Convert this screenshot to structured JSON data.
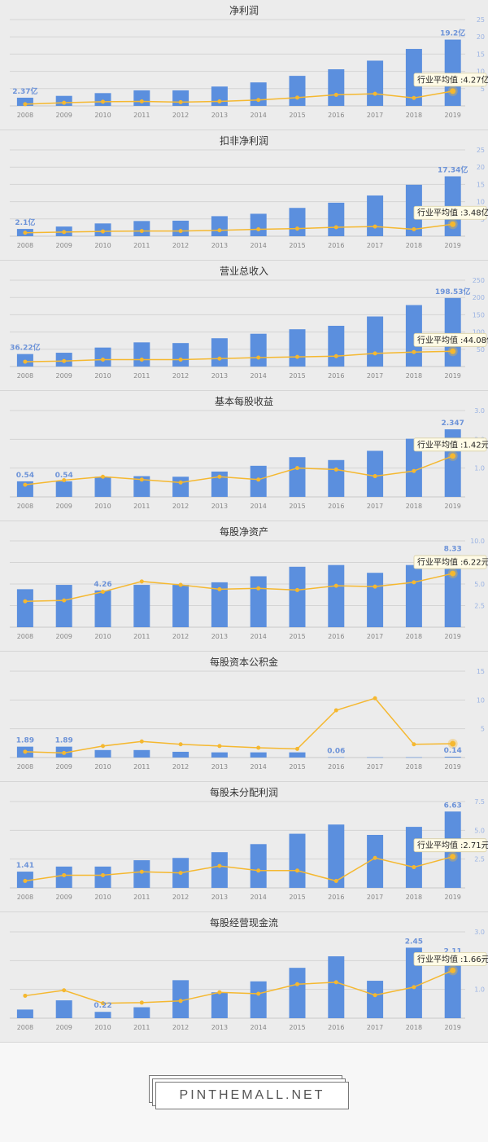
{
  "chart_data": [
    {
      "type": "bar",
      "title": "净利润",
      "categories": [
        "2008",
        "2009",
        "2010",
        "2011",
        "2012",
        "2013",
        "2014",
        "2015",
        "2016",
        "2017",
        "2018",
        "2019"
      ],
      "series": [
        {
          "values": [
            2.37,
            2.9,
            3.7,
            4.5,
            4.5,
            5.6,
            6.8,
            8.7,
            10.6,
            13.1,
            16.5,
            19.2
          ],
          "color": "#5b8fde"
        },
        {
          "values": [
            0.5,
            0.9,
            1.2,
            1.3,
            1.1,
            1.3,
            1.7,
            2.4,
            3.2,
            3.5,
            2.3,
            4.27
          ],
          "color": "#f5b830"
        }
      ],
      "yticks": [
        "5",
        "10",
        "15",
        "20",
        "25"
      ],
      "ylim": [
        0,
        25
      ],
      "data_labels": [
        {
          "index": 0,
          "text": "2.37亿"
        },
        {
          "index": 11,
          "text": "19.2亿"
        }
      ],
      "tooltip": {
        "label": "行业平均值",
        "value": ":4.27亿"
      }
    },
    {
      "type": "bar",
      "title": "扣非净利润",
      "categories": [
        "2008",
        "2009",
        "2010",
        "2011",
        "2012",
        "2013",
        "2014",
        "2015",
        "2016",
        "2017",
        "2018",
        "2019"
      ],
      "series": [
        {
          "values": [
            2.1,
            2.8,
            3.7,
            4.4,
            4.5,
            5.8,
            6.5,
            8.2,
            9.7,
            11.8,
            14.9,
            17.34
          ],
          "color": "#5b8fde"
        },
        {
          "values": [
            1.0,
            1.2,
            1.4,
            1.5,
            1.5,
            1.7,
            2.0,
            2.2,
            2.6,
            2.8,
            2.0,
            3.48
          ],
          "color": "#f5b830"
        }
      ],
      "yticks": [
        "5",
        "10",
        "15",
        "20",
        "25"
      ],
      "ylim": [
        0,
        25
      ],
      "data_labels": [
        {
          "index": 0,
          "text": "2.1亿"
        },
        {
          "index": 11,
          "text": "17.34亿"
        }
      ],
      "tooltip": {
        "label": "行业平均值",
        "value": ":3.48亿"
      }
    },
    {
      "type": "bar",
      "title": "营业总收入",
      "categories": [
        "2008",
        "2009",
        "2010",
        "2011",
        "2012",
        "2013",
        "2014",
        "2015",
        "2016",
        "2017",
        "2018",
        "2019"
      ],
      "series": [
        {
          "values": [
            36.22,
            40,
            55,
            70,
            68,
            82,
            95,
            108,
            118,
            145,
            178,
            198.53
          ],
          "color": "#5b8fde"
        },
        {
          "values": [
            14,
            16,
            20,
            20,
            20,
            23,
            26,
            28,
            30,
            38,
            42,
            44.08
          ],
          "color": "#f5b830"
        }
      ],
      "yticks": [
        "50",
        "100",
        "150",
        "200",
        "250"
      ],
      "ylim": [
        0,
        250
      ],
      "data_labels": [
        {
          "index": 0,
          "text": "36.22亿"
        },
        {
          "index": 11,
          "text": "198.53亿"
        }
      ],
      "tooltip": {
        "label": "行业平均值",
        "value": ":44.08亿"
      }
    },
    {
      "type": "bar",
      "title": "基本每股收益",
      "categories": [
        "2008",
        "2009",
        "2010",
        "2011",
        "2012",
        "2013",
        "2014",
        "2015",
        "2016",
        "2017",
        "2018",
        "2019"
      ],
      "series": [
        {
          "values": [
            0.54,
            0.54,
            0.7,
            0.72,
            0.7,
            0.88,
            1.08,
            1.38,
            1.28,
            1.6,
            2.02,
            2.347
          ],
          "color": "#5b8fde"
        },
        {
          "values": [
            0.42,
            0.58,
            0.7,
            0.6,
            0.5,
            0.7,
            0.6,
            1.0,
            0.95,
            0.72,
            0.9,
            1.42
          ],
          "color": "#f5b830"
        }
      ],
      "yticks": [
        "1.0",
        "2.0",
        "3.0"
      ],
      "ylim": [
        0,
        3
      ],
      "data_labels": [
        {
          "index": 0,
          "text": "0.54"
        },
        {
          "index": 1,
          "text": "0.54"
        },
        {
          "index": 11,
          "text": "2.347"
        }
      ],
      "tooltip": {
        "label": "行业平均值",
        "value": ":1.42元"
      }
    },
    {
      "type": "bar",
      "title": "每股净资产",
      "categories": [
        "2008",
        "2009",
        "2010",
        "2011",
        "2012",
        "2013",
        "2014",
        "2015",
        "2016",
        "2017",
        "2018",
        "2019"
      ],
      "series": [
        {
          "values": [
            4.4,
            4.9,
            4.26,
            4.9,
            4.9,
            5.2,
            5.9,
            7.0,
            7.2,
            6.3,
            7.2,
            8.33
          ],
          "color": "#5b8fde"
        },
        {
          "values": [
            3.0,
            3.1,
            4.1,
            5.3,
            4.9,
            4.4,
            4.5,
            4.3,
            4.8,
            4.7,
            5.2,
            6.22
          ],
          "color": "#f5b830"
        }
      ],
      "yticks": [
        "2.5",
        "5.0",
        "7.5",
        "10.0"
      ],
      "ylim": [
        0,
        10
      ],
      "data_labels": [
        {
          "index": 2,
          "text": "4.26"
        },
        {
          "index": 11,
          "text": "8.33"
        }
      ],
      "tooltip": {
        "label": "行业平均值",
        "value": ":6.22元"
      }
    },
    {
      "type": "bar",
      "title": "每股资本公积金",
      "categories": [
        "2008",
        "2009",
        "2010",
        "2011",
        "2012",
        "2013",
        "2014",
        "2015",
        "2016",
        "2017",
        "2018",
        "2019"
      ],
      "series": [
        {
          "values": [
            1.89,
            1.89,
            1.3,
            1.3,
            1.0,
            0.9,
            0.9,
            0.9,
            0.06,
            0.05,
            0.05,
            0.14
          ],
          "color": "#5b8fde"
        },
        {
          "values": [
            1.0,
            0.8,
            2.0,
            2.8,
            2.3,
            2.0,
            1.7,
            1.5,
            8.2,
            10.3,
            2.3,
            2.4
          ],
          "color": "#f5b830"
        }
      ],
      "yticks": [
        "5",
        "10",
        "15"
      ],
      "ylim": [
        0,
        15
      ],
      "data_labels": [
        {
          "index": 0,
          "text": "1.89"
        },
        {
          "index": 1,
          "text": "1.89"
        },
        {
          "index": 8,
          "text": "0.06"
        },
        {
          "index": 11,
          "text": "0.14"
        }
      ],
      "tooltip": null
    },
    {
      "type": "bar",
      "title": "每股未分配利润",
      "categories": [
        "2008",
        "2009",
        "2010",
        "2011",
        "2012",
        "2013",
        "2014",
        "2015",
        "2016",
        "2017",
        "2018",
        "2019"
      ],
      "series": [
        {
          "values": [
            1.41,
            1.85,
            1.85,
            2.4,
            2.6,
            3.1,
            3.8,
            4.7,
            5.5,
            4.6,
            5.3,
            6.63
          ],
          "color": "#5b8fde"
        },
        {
          "values": [
            0.6,
            1.1,
            1.1,
            1.4,
            1.3,
            1.9,
            1.5,
            1.5,
            0.6,
            2.6,
            1.8,
            2.71
          ],
          "color": "#f5b830"
        }
      ],
      "yticks": [
        "2.5",
        "5.0",
        "7.5"
      ],
      "ylim": [
        0,
        7.5
      ],
      "data_labels": [
        {
          "index": 0,
          "text": "1.41"
        },
        {
          "index": 11,
          "text": "6.63"
        }
      ],
      "tooltip": {
        "label": "行业平均值",
        "value": ":2.71元"
      }
    },
    {
      "type": "bar",
      "title": "每股经营现金流",
      "categories": [
        "2008",
        "2009",
        "2010",
        "2011",
        "2012",
        "2013",
        "2014",
        "2015",
        "2016",
        "2017",
        "2018",
        "2019"
      ],
      "series": [
        {
          "values": [
            0.3,
            0.62,
            0.22,
            0.38,
            1.32,
            0.9,
            1.28,
            1.75,
            2.15,
            1.3,
            2.45,
            2.11
          ],
          "color": "#5b8fde"
        },
        {
          "values": [
            0.78,
            0.97,
            0.52,
            0.54,
            0.6,
            0.9,
            0.85,
            1.18,
            1.25,
            0.8,
            1.08,
            1.66
          ],
          "color": "#f5b830"
        }
      ],
      "yticks": [
        "1.0",
        "2.0",
        "3.0"
      ],
      "ylim": [
        0,
        3
      ],
      "data_labels": [
        {
          "index": 2,
          "text": "0.22"
        },
        {
          "index": 10,
          "text": "2.45"
        },
        {
          "index": 11,
          "text": "2.11"
        }
      ],
      "tooltip": {
        "label": "行业平均值",
        "value": ":1.66元"
      }
    }
  ],
  "footer": {
    "logo_text": "PINTHEMALL.NET"
  }
}
